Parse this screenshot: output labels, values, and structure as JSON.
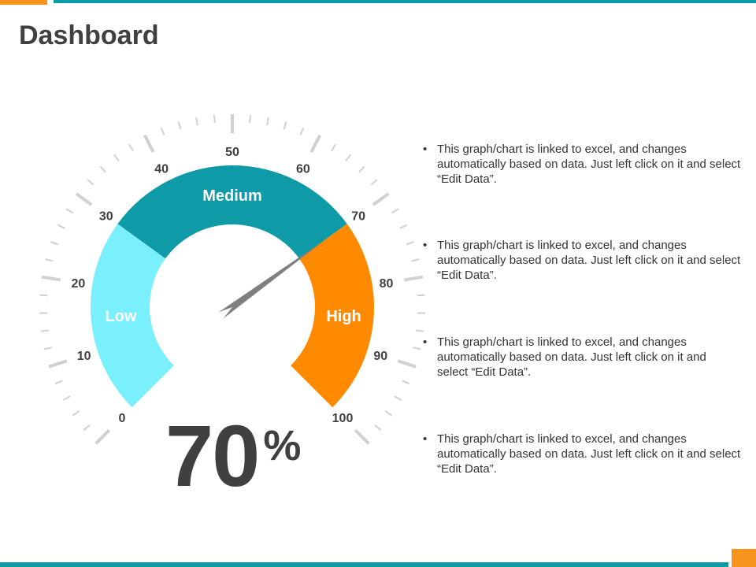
{
  "title": "Dashboard",
  "chart_data": {
    "type": "gauge",
    "value": 70,
    "value_label": "70",
    "unit": "%",
    "min": 0,
    "max": 100,
    "tick_labels": [
      "0",
      "10",
      "20",
      "30",
      "40",
      "50",
      "60",
      "70",
      "80",
      "90",
      "100"
    ],
    "bands": [
      {
        "name": "Low",
        "from": 0,
        "to": 30,
        "color": "#7AF0FF"
      },
      {
        "name": "Medium",
        "from": 30,
        "to": 70,
        "color": "#0E9AA7"
      },
      {
        "name": "High",
        "from": 70,
        "to": 100,
        "color": "#FF8A00"
      }
    ],
    "needle_color": "#7F7F7F",
    "label_color": "#404040",
    "tick_color": "#D0D0D0"
  },
  "notes": [
    "This graph/chart is linked to excel, and changes automatically based on data. Just left click on it and select “Edit Data”.",
    "This graph/chart is linked to excel, and changes automatically based on data. Just left click on it and select “Edit Data”.",
    "This graph/chart is linked to excel, and changes automatically based on data. Just left click on it and select “Edit Data”.",
    "This graph/chart is linked to excel, and changes automatically based on data. Just left click on it and select “Edit Data”."
  ],
  "bullet_char": "•",
  "colors": {
    "accent_orange": "#F7941D",
    "accent_teal": "#0E9AA7",
    "text": "#404040"
  }
}
